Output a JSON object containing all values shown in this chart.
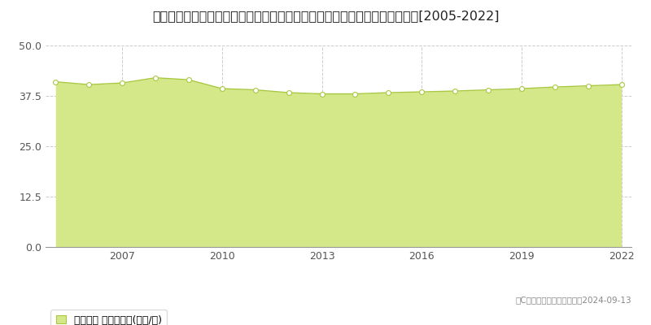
{
  "title": "東京都西多摩郡瑞穂町大字笥根ケ崎字狭山２９５番４　地価公示　地価推移[2005-2022]",
  "years": [
    2005,
    2006,
    2007,
    2008,
    2009,
    2010,
    2011,
    2012,
    2013,
    2014,
    2015,
    2016,
    2017,
    2018,
    2019,
    2020,
    2021,
    2022
  ],
  "values": [
    41.0,
    40.3,
    40.7,
    42.0,
    41.5,
    39.3,
    39.0,
    38.3,
    38.0,
    38.0,
    38.3,
    38.5,
    38.7,
    39.0,
    39.3,
    39.7,
    40.0,
    40.3
  ],
  "line_color": "#a8c840",
  "fill_color": "#d4e88a",
  "marker_color": "#ffffff",
  "marker_edge_color": "#a8c840",
  "ylim": [
    0,
    50
  ],
  "yticks": [
    0,
    12.5,
    25,
    37.5,
    50
  ],
  "xlabel_ticks": [
    2007,
    2010,
    2013,
    2016,
    2019,
    2022
  ],
  "grid_color": "#cccccc",
  "bg_color": "#ffffff",
  "legend_label": "地価公示 平均嵪単価(万円/嵪)",
  "copyright_text": "（C）土地価格ドットコム　2024-09-13",
  "title_fontsize": 11.5,
  "tick_fontsize": 9,
  "legend_fontsize": 9
}
